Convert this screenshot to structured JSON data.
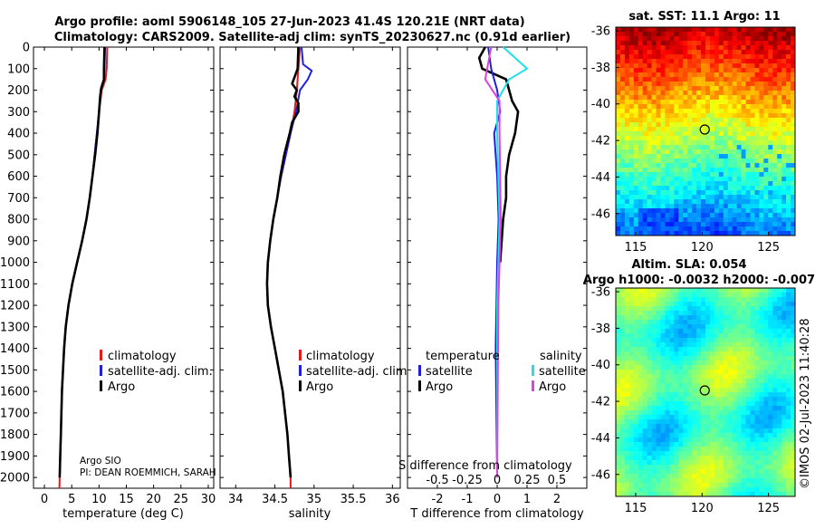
{
  "header": {
    "title_line1": "Argo profile: aoml 5906148_105 27-Jun-2023 41.4S 120.21E (NRT data)",
    "title_line2": "Climatology: CARS2009. Satellite-adj clim: synTS_20230627.nc (0.91d earlier)"
  },
  "colors": {
    "climatology": "#e41a1c",
    "satellite": "#1f1fe0",
    "argo": "#000000",
    "t_sat": "#20e0e8",
    "s_sat": "#e040e0"
  },
  "chart_data": [
    {
      "type": "line",
      "name": "temperature",
      "xlabel": "temperature (deg C)",
      "xlim": [
        -2,
        31
      ],
      "ylim": [
        2050,
        0
      ],
      "xticks": [
        "0",
        "5",
        "10",
        "15",
        "20",
        "25",
        "30"
      ],
      "yticks": [
        "0",
        "100",
        "200",
        "300",
        "400",
        "500",
        "600",
        "700",
        "800",
        "900",
        "1000",
        "1100",
        "1200",
        "1300",
        "1400",
        "1500",
        "1600",
        "1700",
        "1800",
        "1900",
        "2000"
      ],
      "legend": [
        "climatology",
        "satellite-adj. clim.",
        "Argo"
      ],
      "notes": [
        "Argo SIO",
        "PI: DEAN ROEMMICH, SARAH"
      ],
      "series": [
        {
          "name": "climatology",
          "points": [
            [
              11.5,
              0
            ],
            [
              11.4,
              100
            ],
            [
              11.2,
              150
            ],
            [
              10.5,
              200
            ],
            [
              10.0,
              300
            ],
            [
              9.6,
              400
            ],
            [
              9.2,
              500
            ],
            [
              8.8,
              600
            ],
            [
              8.3,
              700
            ],
            [
              7.7,
              800
            ],
            [
              6.9,
              900
            ],
            [
              6.0,
              1000
            ],
            [
              5.1,
              1100
            ],
            [
              4.4,
              1200
            ],
            [
              3.9,
              1300
            ],
            [
              3.6,
              1400
            ],
            [
              3.4,
              1500
            ],
            [
              3.2,
              1600
            ],
            [
              3.1,
              1700
            ],
            [
              3.0,
              1800
            ],
            [
              2.9,
              1900
            ],
            [
              2.8,
              2000
            ],
            [
              2.75,
              2050
            ]
          ]
        },
        {
          "name": "satellite-adj. clim.",
          "points": [
            [
              11.1,
              0
            ],
            [
              11.0,
              100
            ],
            [
              10.9,
              150
            ],
            [
              10.3,
              200
            ],
            [
              10.0,
              300
            ],
            [
              9.6,
              400
            ],
            [
              9.2,
              500
            ],
            [
              8.8,
              600
            ],
            [
              8.3,
              700
            ],
            [
              7.7,
              800
            ],
            [
              6.9,
              900
            ],
            [
              6.0,
              1000
            ],
            [
              5.1,
              1100
            ],
            [
              4.4,
              1200
            ],
            [
              3.9,
              1300
            ],
            [
              3.6,
              1400
            ],
            [
              3.4,
              1500
            ],
            [
              3.2,
              1600
            ],
            [
              3.1,
              1700
            ],
            [
              3.0,
              1800
            ],
            [
              2.9,
              1900
            ],
            [
              2.8,
              2000
            ]
          ]
        },
        {
          "name": "Argo",
          "points": [
            [
              11.0,
              0
            ],
            [
              10.9,
              100
            ],
            [
              10.9,
              150
            ],
            [
              10.4,
              190
            ],
            [
              10.2,
              230
            ],
            [
              10.0,
              300
            ],
            [
              9.7,
              400
            ],
            [
              9.3,
              500
            ],
            [
              8.8,
              600
            ],
            [
              8.3,
              700
            ],
            [
              7.7,
              800
            ],
            [
              6.9,
              900
            ],
            [
              6.0,
              1000
            ],
            [
              5.1,
              1100
            ],
            [
              4.4,
              1200
            ],
            [
              3.9,
              1300
            ],
            [
              3.6,
              1400
            ],
            [
              3.4,
              1500
            ],
            [
              3.2,
              1600
            ],
            [
              3.1,
              1700
            ],
            [
              3.0,
              1800
            ],
            [
              2.9,
              1900
            ],
            [
              2.8,
              2000
            ]
          ]
        }
      ]
    },
    {
      "type": "line",
      "name": "salinity",
      "xlabel": "salinity",
      "xlim": [
        33.8,
        36.1
      ],
      "ylim": [
        2050,
        0
      ],
      "xticks": [
        "34",
        "34.5",
        "35",
        "35.5",
        "36"
      ],
      "legend": [
        "climatology",
        "satellite-adj. clim.",
        "Argo"
      ],
      "series": [
        {
          "name": "climatology",
          "points": [
            [
              34.82,
              0
            ],
            [
              34.8,
              100
            ],
            [
              34.78,
              200
            ],
            [
              34.75,
              300
            ],
            [
              34.7,
              400
            ],
            [
              34.64,
              500
            ],
            [
              34.58,
              600
            ],
            [
              34.53,
              700
            ],
            [
              34.48,
              800
            ],
            [
              34.44,
              900
            ],
            [
              34.41,
              1000
            ],
            [
              34.4,
              1100
            ],
            [
              34.41,
              1200
            ],
            [
              34.45,
              1300
            ],
            [
              34.5,
              1400
            ],
            [
              34.55,
              1500
            ],
            [
              34.6,
              1600
            ],
            [
              34.63,
              1700
            ],
            [
              34.66,
              1800
            ],
            [
              34.68,
              1900
            ],
            [
              34.7,
              2000
            ],
            [
              34.7,
              2050
            ]
          ]
        },
        {
          "name": "satellite-adj. clim.",
          "points": [
            [
              34.84,
              0
            ],
            [
              34.86,
              80
            ],
            [
              34.97,
              110
            ],
            [
              34.92,
              150
            ],
            [
              34.82,
              200
            ],
            [
              34.77,
              300
            ],
            [
              34.7,
              400
            ],
            [
              34.64,
              500
            ],
            [
              34.58,
              600
            ],
            [
              34.53,
              700
            ],
            [
              34.48,
              800
            ],
            [
              34.44,
              900
            ],
            [
              34.41,
              1000
            ],
            [
              34.4,
              1100
            ],
            [
              34.41,
              1200
            ],
            [
              34.45,
              1300
            ],
            [
              34.5,
              1400
            ],
            [
              34.55,
              1500
            ],
            [
              34.6,
              1600
            ],
            [
              34.63,
              1700
            ],
            [
              34.66,
              1800
            ],
            [
              34.68,
              1900
            ],
            [
              34.7,
              2000
            ]
          ]
        },
        {
          "name": "Argo",
          "points": [
            [
              34.8,
              0
            ],
            [
              34.79,
              100
            ],
            [
              34.72,
              170
            ],
            [
              34.78,
              200
            ],
            [
              34.75,
              230
            ],
            [
              34.8,
              260
            ],
            [
              34.8,
              300
            ],
            [
              34.72,
              350
            ],
            [
              34.69,
              400
            ],
            [
              34.62,
              500
            ],
            [
              34.57,
              600
            ],
            [
              34.53,
              700
            ],
            [
              34.48,
              800
            ],
            [
              34.44,
              900
            ],
            [
              34.41,
              1000
            ],
            [
              34.4,
              1100
            ],
            [
              34.41,
              1200
            ],
            [
              34.45,
              1300
            ],
            [
              34.5,
              1400
            ],
            [
              34.55,
              1500
            ],
            [
              34.6,
              1600
            ],
            [
              34.63,
              1700
            ],
            [
              34.66,
              1800
            ],
            [
              34.68,
              1900
            ],
            [
              34.7,
              2000
            ]
          ]
        }
      ]
    },
    {
      "type": "line",
      "name": "difference",
      "xlabel": "T difference from climatology",
      "inner_xlabel": "S difference from climatology",
      "xlim": [
        -3,
        3
      ],
      "ylim": [
        2050,
        0
      ],
      "xticks": [
        "-2",
        "-1",
        "0",
        "1",
        "2"
      ],
      "s_ticks": [
        "-0.5",
        "-0.25",
        "0",
        "0.25",
        "0.5"
      ],
      "legend_groups": {
        "temperature": {
          "title": "temperature",
          "items": [
            "satellite",
            "Argo"
          ]
        },
        "salinity": {
          "title": "salinity",
          "items": [
            "satellite",
            "Argo"
          ]
        }
      },
      "series": [
        {
          "name": "T Argo",
          "points": [
            [
              -0.4,
              0
            ],
            [
              -0.6,
              50
            ],
            [
              -0.5,
              100
            ],
            [
              0.3,
              150
            ],
            [
              0.5,
              250
            ],
            [
              0.7,
              300
            ],
            [
              0.6,
              400
            ],
            [
              0.4,
              500
            ],
            [
              0.3,
              600
            ],
            [
              0.3,
              700
            ],
            [
              0.2,
              800
            ],
            [
              0.15,
              900
            ],
            [
              0.1,
              1000
            ]
          ]
        },
        {
          "name": "T satellite",
          "points": [
            [
              -0.3,
              0
            ],
            [
              -0.2,
              100
            ],
            [
              0,
              200
            ],
            [
              0.1,
              300
            ],
            [
              -0.1,
              400
            ],
            [
              0,
              600
            ],
            [
              0.05,
              800
            ],
            [
              0,
              1000
            ],
            [
              -0.05,
              1400
            ],
            [
              0,
              2000
            ]
          ]
        },
        {
          "name": "S satellite",
          "points": [
            [
              0.05,
              0
            ],
            [
              0.15,
              50
            ],
            [
              0.25,
              100
            ],
            [
              0.1,
              150
            ],
            [
              0,
              250
            ],
            [
              0,
              400
            ],
            [
              0.02,
              800
            ],
            [
              0,
              1200
            ],
            [
              0,
              2000
            ]
          ]
        },
        {
          "name": "S Argo",
          "points": [
            [
              -0.05,
              0
            ],
            [
              -0.1,
              150
            ],
            [
              0.02,
              250
            ],
            [
              0.02,
              400
            ],
            [
              0.03,
              800
            ],
            [
              0.01,
              1200
            ],
            [
              0,
              2000
            ]
          ]
        }
      ]
    },
    {
      "type": "heatmap",
      "name": "sst_map",
      "title": "sat. SST: 11.1 Argo: 11",
      "xticks": [
        "115",
        "120",
        "125"
      ],
      "yticks": [
        "-36",
        "-38",
        "-40",
        "-42",
        "-44",
        "-46"
      ],
      "xlim": [
        113.5,
        127
      ],
      "ylim": [
        -47.2,
        -35.8
      ],
      "marker": [
        120.2,
        -41.4
      ]
    },
    {
      "type": "heatmap",
      "name": "sla_map",
      "title": "Altim. SLA: 0.054",
      "subtitle": "Argo h1000: -0.0032 h2000: -0.007",
      "xticks": [
        "115",
        "120",
        "125"
      ],
      "yticks": [
        "-36",
        "-38",
        "-40",
        "-42",
        "-44",
        "-46"
      ],
      "xlim": [
        113.5,
        127
      ],
      "ylim": [
        -47.2,
        -35.8
      ],
      "marker": [
        120.2,
        -41.4
      ]
    }
  ],
  "footer": {
    "stamp": "©IMOS 02-Jul-2023 11:40:28"
  }
}
